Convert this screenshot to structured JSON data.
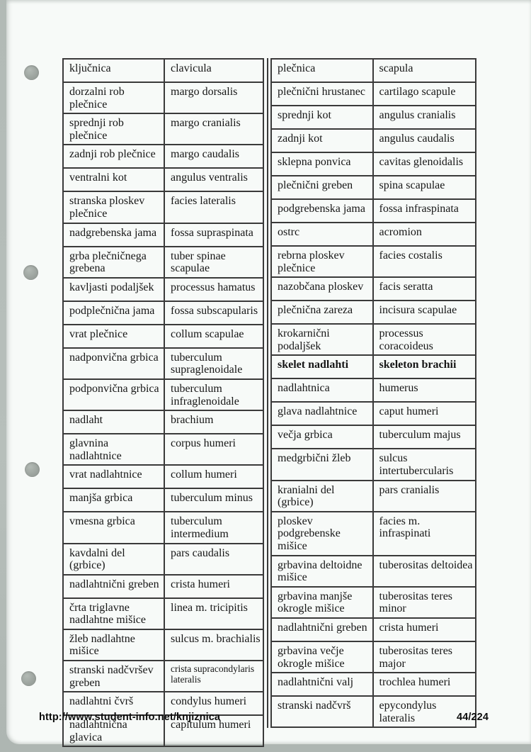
{
  "page": {
    "footer_url": "http://www.student-info.net/knjiznica",
    "page_number": "44/224"
  },
  "colors": {
    "paper": "#f7faf8",
    "scan_edge": "#b7bfbb",
    "table_border": "#3a3a3a",
    "text": "#161616"
  },
  "tables": {
    "left": {
      "rows": [
        {
          "sl": "ključnica",
          "la": "clavicula"
        },
        {
          "sl": "dorzalni rob plečnice",
          "la": "margo dorsalis"
        },
        {
          "sl": "sprednji rob plečnice",
          "la": "margo cranialis"
        },
        {
          "sl": "zadnji rob plečnice",
          "la": "margo caudalis"
        },
        {
          "sl": "ventralni kot",
          "la": "angulus ventralis"
        },
        {
          "sl": "stranska ploskev plečnice",
          "la": "facies lateralis"
        },
        {
          "sl": "nadgrebenska jama",
          "la": "fossa supraspinata"
        },
        {
          "sl": "grba plečničnega grebena",
          "la": "tuber spinae scapulae"
        },
        {
          "sl": "kavljasti podaljšek",
          "la": "processus hamatus"
        },
        {
          "sl": "podplečnična jama",
          "la": "fossa subscapularis"
        },
        {
          "sl": "vrat plečnice",
          "la": "collum scapulae"
        },
        {
          "sl": "nadponvična grbica",
          "la": "tuberculum supraglenoidale"
        },
        {
          "sl": "podponvična grbica",
          "la": "tuberculum infraglenoidale"
        },
        {
          "sl": "nadlaht",
          "la": "brachium"
        },
        {
          "sl": "glavnina nadlahtnice",
          "la": "corpus humeri"
        },
        {
          "sl": "vrat nadlahtnice",
          "la": "collum humeri"
        },
        {
          "sl": "manjša grbica",
          "la": "tuberculum minus"
        },
        {
          "sl": "vmesna grbica",
          "la": "tuberculum intermedium"
        },
        {
          "sl": "kavdalni del (grbice)",
          "la": "pars caudalis"
        },
        {
          "sl": "nadlahtnični greben",
          "la": "crista humeri"
        },
        {
          "sl": "črta triglavne nadlahtne mišice",
          "la": "linea m. tricipitis"
        },
        {
          "sl": "žleb nadlahtne mišice",
          "la": "sulcus m. brachialis"
        },
        {
          "sl": "stranski nadčvršev greben",
          "la": "crista supracondylaris lateralis",
          "la_small": true
        },
        {
          "sl": "nadlahtni čvrš",
          "la": "condylus humeri"
        },
        {
          "sl": "nadlahtnična glavica",
          "la": "capitulum humeri"
        }
      ]
    },
    "right": {
      "rows": [
        {
          "sl": "plečnica",
          "la": "scapula"
        },
        {
          "sl": "plečnični hrustanec",
          "la": "cartilago scapule"
        },
        {
          "sl": "sprednji kot",
          "la": "angulus cranialis"
        },
        {
          "sl": "zadnji kot",
          "la": "angulus caudalis"
        },
        {
          "sl": "sklepna ponvica",
          "la": "cavitas glenoidalis"
        },
        {
          "sl": "plečnični greben",
          "la": "spina scapulae"
        },
        {
          "sl": "podgrebenska jama",
          "la": "fossa infraspinata"
        },
        {
          "sl": "ostrc",
          "la": "acromion"
        },
        {
          "sl": "rebrna ploskev plečnice",
          "la": "facies costalis"
        },
        {
          "sl": "nazobčana ploskev",
          "la": "facis seratta"
        },
        {
          "sl": "plečnična zareza",
          "la": "incisura scapulae"
        },
        {
          "sl": "krokarnični podaljšek",
          "la": "processus coracoideus"
        },
        {
          "sl": "skelet nadlahti",
          "la": "skeleton brachii",
          "bold": true
        },
        {
          "sl": "nadlahtnica",
          "la": "humerus"
        },
        {
          "sl": "glava nadlahtnice",
          "la": "caput humeri"
        },
        {
          "sl": "večja grbica",
          "la": "tuberculum majus"
        },
        {
          "sl": "medgrbični žleb",
          "la": "sulcus intertubercularis"
        },
        {
          "sl": "kranialni del (grbice)",
          "la": "pars cranialis"
        },
        {
          "sl": "ploskev podgrebenske mišice",
          "la": "facies m. infraspinati"
        },
        {
          "sl": "grbavina deltoidne mišice",
          "la": "tuberositas deltoidea"
        },
        {
          "sl": "grbavina manjše okrogle mišice",
          "la": "tuberositas teres minor"
        },
        {
          "sl": "nadlahtnični greben",
          "la": "crista humeri"
        },
        {
          "sl": "grbavina večje okrogle mišice",
          "la": "tuberositas teres major"
        },
        {
          "sl": "nadlahtnični valj",
          "la": "trochlea humeri"
        },
        {
          "sl": "stranski nadčvrš",
          "la": "epycondylus lateralis"
        }
      ]
    }
  }
}
